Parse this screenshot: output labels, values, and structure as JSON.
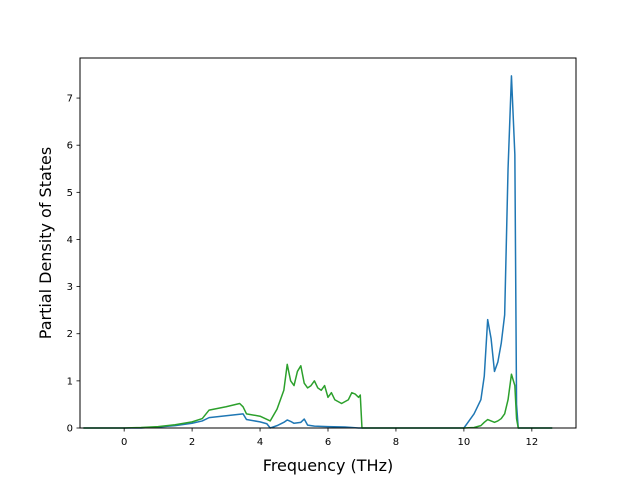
{
  "chart_data": {
    "type": "line",
    "title": "",
    "xlabel": "Frequency (THz)",
    "ylabel": "Partial Density of States",
    "xlim": [
      -1.3,
      13.3
    ],
    "ylim": [
      0,
      7.85
    ],
    "xticks": [
      0,
      2,
      4,
      6,
      8,
      10,
      12
    ],
    "yticks": [
      0,
      1,
      2,
      3,
      4,
      5,
      6,
      7
    ],
    "grid": false,
    "legend": "none",
    "series": [
      {
        "color": "#1f77b4",
        "x": [
          -1.2,
          0.0,
          0.5,
          1.0,
          1.5,
          2.0,
          2.3,
          2.5,
          3.0,
          3.5,
          3.6,
          4.0,
          4.2,
          4.3,
          4.5,
          4.7,
          4.8,
          4.9,
          5.0,
          5.2,
          5.3,
          5.4,
          5.6,
          6.0,
          6.5,
          6.9,
          7.0,
          8.0,
          9.0,
          10.0,
          10.1,
          10.3,
          10.5,
          10.6,
          10.7,
          10.8,
          10.9,
          11.0,
          11.1,
          11.2,
          11.3,
          11.4,
          11.5,
          11.55,
          11.6,
          12.0,
          12.6
        ],
        "values": [
          0.0,
          0.0,
          0.0,
          0.02,
          0.05,
          0.1,
          0.15,
          0.22,
          0.26,
          0.3,
          0.18,
          0.13,
          0.09,
          0.0,
          0.05,
          0.12,
          0.17,
          0.14,
          0.1,
          0.12,
          0.19,
          0.06,
          0.04,
          0.03,
          0.02,
          0.0,
          0.0,
          0.0,
          0.0,
          0.0,
          0.1,
          0.3,
          0.6,
          1.1,
          2.3,
          1.9,
          1.2,
          1.4,
          1.8,
          2.4,
          5.5,
          7.47,
          5.8,
          0.5,
          0.0,
          0.0,
          0.0
        ]
      },
      {
        "color": "#2ca02c",
        "x": [
          -1.2,
          0.0,
          0.5,
          1.0,
          1.5,
          2.0,
          2.3,
          2.5,
          3.0,
          3.4,
          3.5,
          3.6,
          4.0,
          4.3,
          4.5,
          4.7,
          4.8,
          4.9,
          5.0,
          5.1,
          5.2,
          5.3,
          5.4,
          5.5,
          5.6,
          5.7,
          5.8,
          5.9,
          6.0,
          6.1,
          6.2,
          6.4,
          6.6,
          6.7,
          6.8,
          6.9,
          6.95,
          7.0,
          8.0,
          9.0,
          10.0,
          10.3,
          10.5,
          10.6,
          10.7,
          10.8,
          10.9,
          11.0,
          11.1,
          11.2,
          11.3,
          11.4,
          11.5,
          11.55,
          11.6,
          12.0,
          12.6
        ],
        "values": [
          0.0,
          0.0,
          0.01,
          0.03,
          0.07,
          0.13,
          0.2,
          0.38,
          0.45,
          0.52,
          0.45,
          0.3,
          0.25,
          0.15,
          0.4,
          0.8,
          1.35,
          1.0,
          0.9,
          1.2,
          1.32,
          0.95,
          0.85,
          0.9,
          1.0,
          0.85,
          0.8,
          0.9,
          0.65,
          0.75,
          0.6,
          0.52,
          0.6,
          0.75,
          0.72,
          0.65,
          0.7,
          0.0,
          0.0,
          0.0,
          0.0,
          0.01,
          0.05,
          0.12,
          0.18,
          0.15,
          0.12,
          0.15,
          0.2,
          0.3,
          0.6,
          1.14,
          0.9,
          0.2,
          0.0,
          0.0,
          0.0
        ]
      }
    ]
  }
}
